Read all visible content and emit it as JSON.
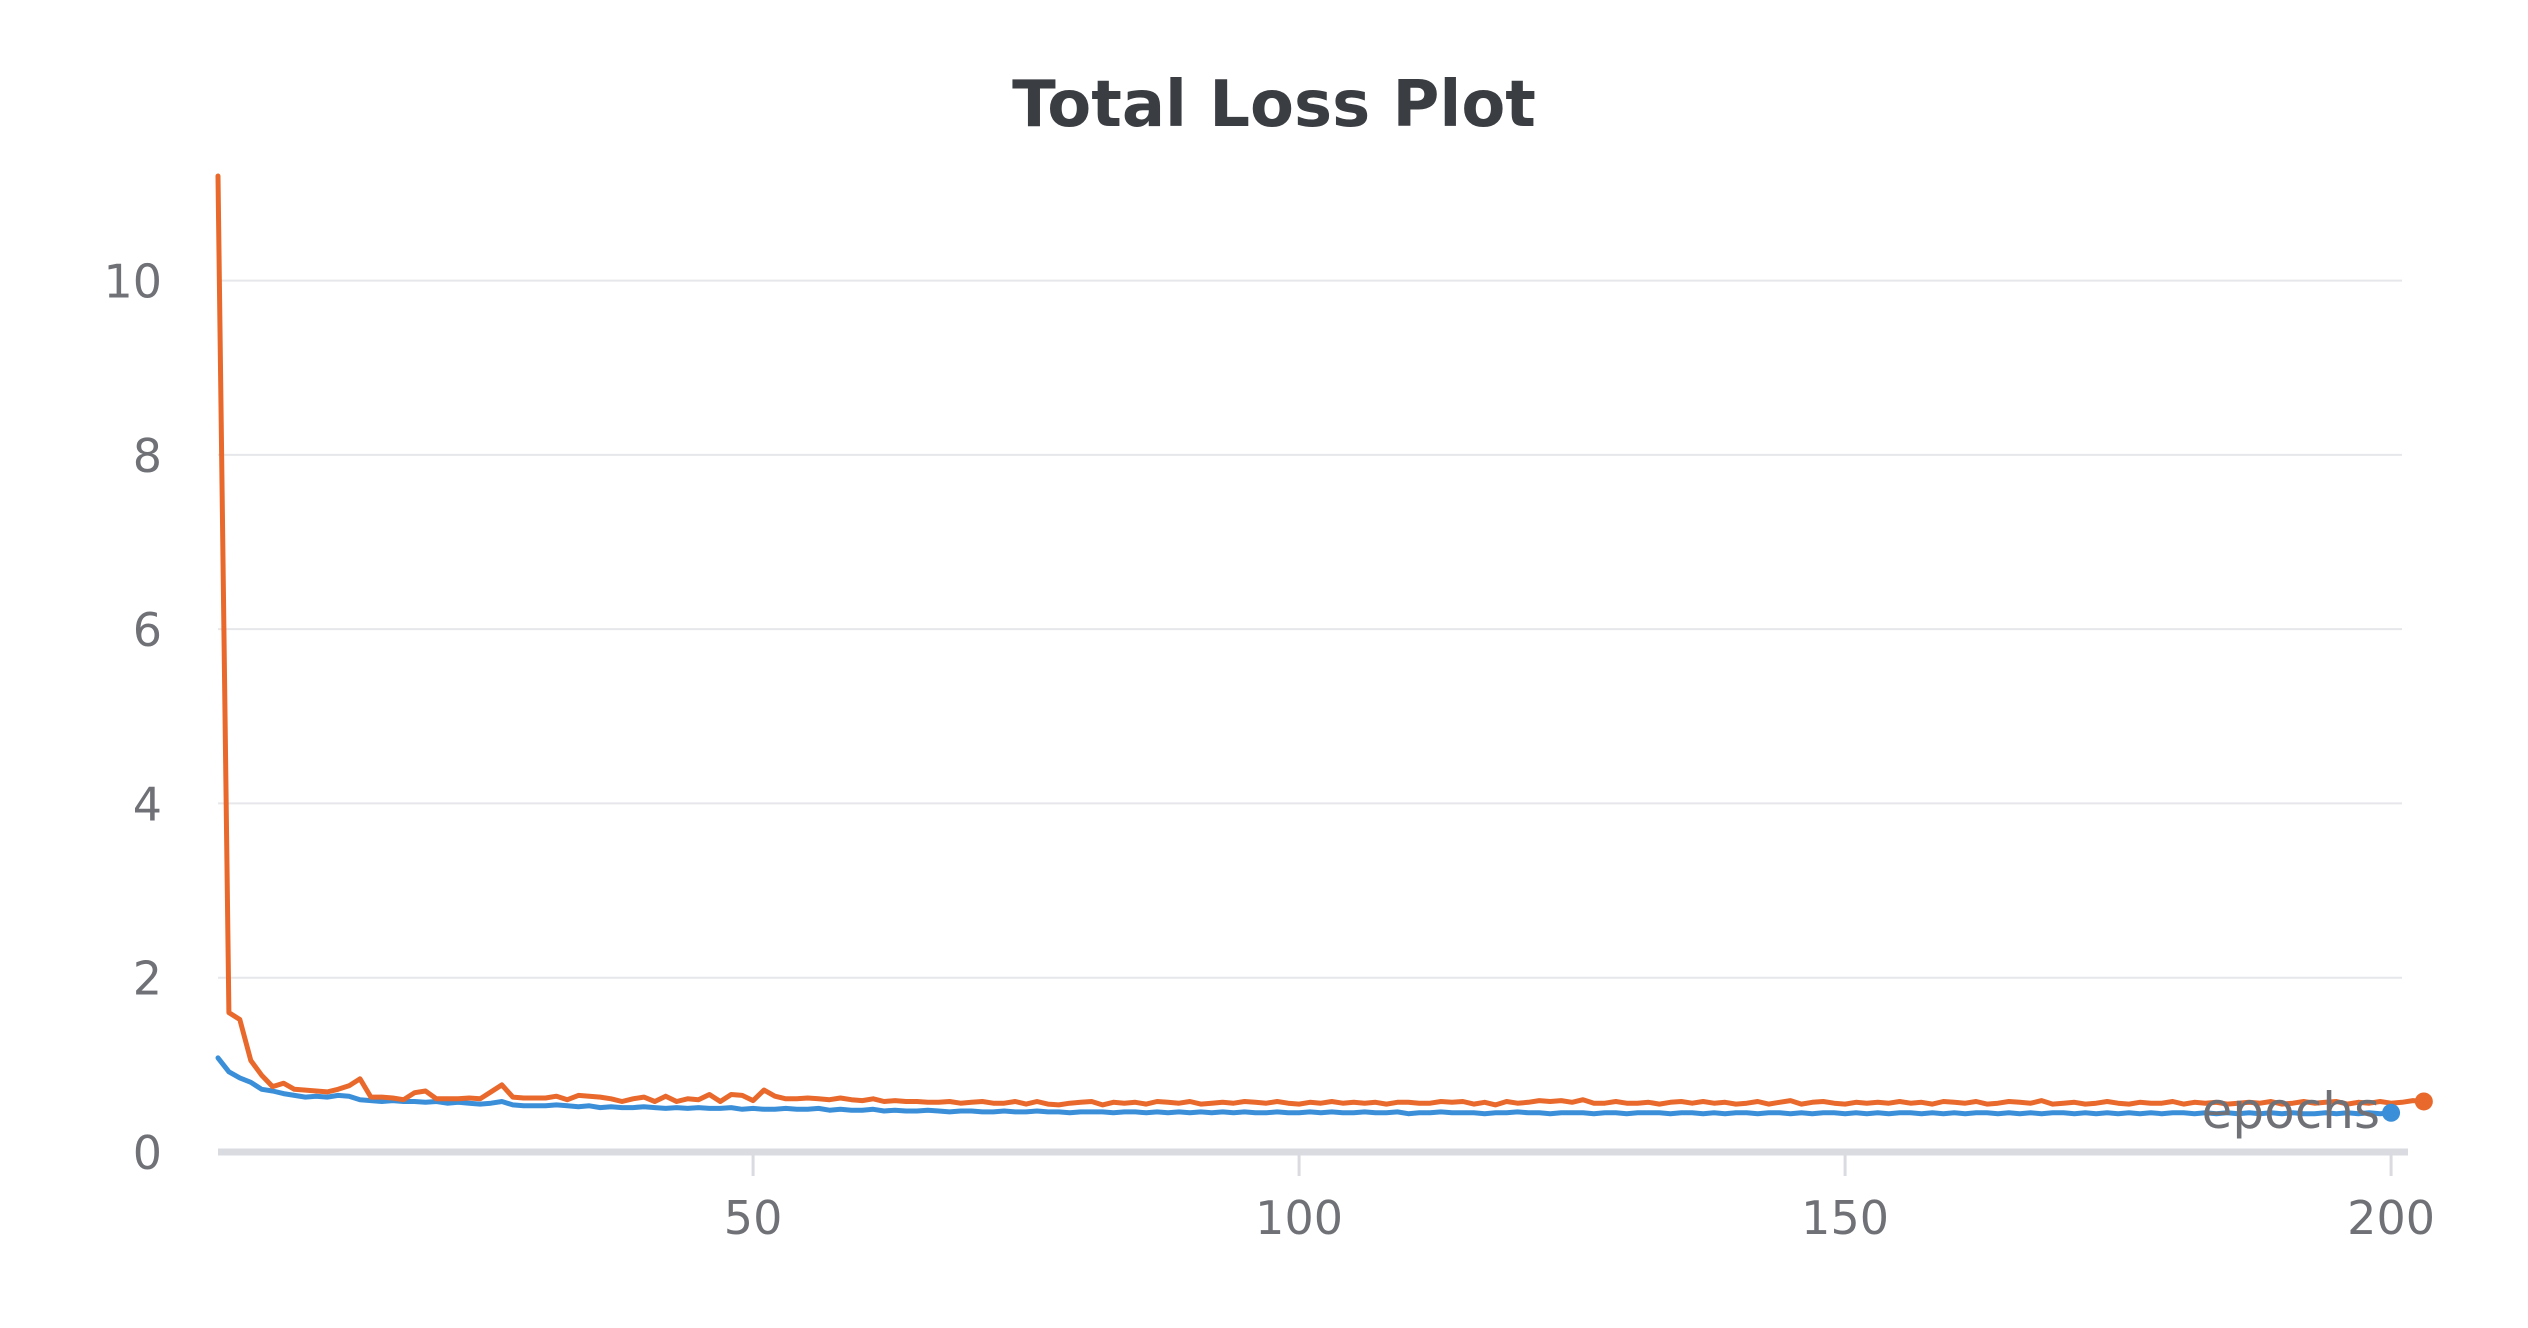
{
  "chart_data": {
    "type": "line",
    "title": "Total Loss Plot",
    "xlabel": "epochs",
    "ylabel": "",
    "xlim": [
      1,
      201
    ],
    "ylim": [
      0,
      11.2
    ],
    "x_ticks": [
      50,
      100,
      150,
      200
    ],
    "y_ticks": [
      0,
      2,
      4,
      6,
      8,
      10
    ],
    "grid": "horizontal",
    "legend": "none",
    "series": [
      {
        "color": "#e8692b",
        "values": [
          11.2,
          1.6,
          1.52,
          1.05,
          0.88,
          0.75,
          0.79,
          0.72,
          0.71,
          0.7,
          0.69,
          0.72,
          0.76,
          0.84,
          0.63,
          0.63,
          0.62,
          0.6,
          0.68,
          0.7,
          0.61,
          0.61,
          0.61,
          0.62,
          0.61,
          0.69,
          0.77,
          0.63,
          0.62,
          0.62,
          0.62,
          0.64,
          0.6,
          0.65,
          0.64,
          0.63,
          0.61,
          0.58,
          0.61,
          0.63,
          0.58,
          0.64,
          0.58,
          0.61,
          0.6,
          0.66,
          0.58,
          0.66,
          0.65,
          0.59,
          0.71,
          0.64,
          0.61,
          0.61,
          0.62,
          0.61,
          0.6,
          0.62,
          0.6,
          0.59,
          0.61,
          0.58,
          0.59,
          0.58,
          0.58,
          0.57,
          0.57,
          0.58,
          0.56,
          0.57,
          0.58,
          0.56,
          0.56,
          0.58,
          0.55,
          0.58,
          0.55,
          0.54,
          0.56,
          0.57,
          0.58,
          0.54,
          0.57,
          0.56,
          0.57,
          0.55,
          0.58,
          0.57,
          0.56,
          0.58,
          0.55,
          0.56,
          0.57,
          0.56,
          0.58,
          0.57,
          0.56,
          0.58,
          0.56,
          0.55,
          0.57,
          0.56,
          0.58,
          0.56,
          0.57,
          0.56,
          0.57,
          0.55,
          0.57,
          0.57,
          0.56,
          0.56,
          0.58,
          0.57,
          0.58,
          0.55,
          0.57,
          0.54,
          0.58,
          0.56,
          0.57,
          0.59,
          0.58,
          0.59,
          0.57,
          0.6,
          0.56,
          0.56,
          0.58,
          0.56,
          0.56,
          0.57,
          0.55,
          0.57,
          0.58,
          0.56,
          0.58,
          0.56,
          0.57,
          0.55,
          0.56,
          0.58,
          0.55,
          0.57,
          0.59,
          0.55,
          0.57,
          0.58,
          0.56,
          0.55,
          0.57,
          0.56,
          0.57,
          0.56,
          0.58,
          0.56,
          0.57,
          0.55,
          0.58,
          0.57,
          0.56,
          0.58,
          0.55,
          0.56,
          0.58,
          0.57,
          0.56,
          0.59,
          0.55,
          0.56,
          0.57,
          0.55,
          0.56,
          0.58,
          0.56,
          0.55,
          0.57,
          0.56,
          0.56,
          0.58,
          0.55,
          0.57,
          0.56,
          0.57,
          0.55,
          0.56,
          0.57,
          0.56,
          0.58,
          0.55,
          0.56,
          0.58,
          0.56,
          0.57,
          0.58,
          0.55,
          0.57,
          0.56,
          0.58,
          0.56,
          0.57,
          0.59,
          0.58
        ]
      },
      {
        "color": "#3b8fd9",
        "values": [
          1.08,
          0.92,
          0.85,
          0.8,
          0.72,
          0.7,
          0.67,
          0.65,
          0.63,
          0.64,
          0.63,
          0.65,
          0.64,
          0.6,
          0.59,
          0.58,
          0.59,
          0.58,
          0.58,
          0.57,
          0.58,
          0.56,
          0.57,
          0.56,
          0.55,
          0.56,
          0.58,
          0.54,
          0.53,
          0.53,
          0.53,
          0.54,
          0.53,
          0.52,
          0.53,
          0.51,
          0.52,
          0.51,
          0.51,
          0.52,
          0.51,
          0.5,
          0.51,
          0.5,
          0.51,
          0.5,
          0.5,
          0.51,
          0.49,
          0.5,
          0.49,
          0.49,
          0.5,
          0.49,
          0.49,
          0.5,
          0.48,
          0.49,
          0.48,
          0.48,
          0.49,
          0.47,
          0.48,
          0.47,
          0.47,
          0.48,
          0.47,
          0.46,
          0.47,
          0.47,
          0.46,
          0.46,
          0.47,
          0.46,
          0.46,
          0.47,
          0.46,
          0.46,
          0.45,
          0.46,
          0.46,
          0.46,
          0.45,
          0.46,
          0.46,
          0.45,
          0.46,
          0.45,
          0.46,
          0.45,
          0.46,
          0.45,
          0.46,
          0.45,
          0.46,
          0.45,
          0.45,
          0.46,
          0.45,
          0.45,
          0.46,
          0.45,
          0.46,
          0.45,
          0.45,
          0.46,
          0.45,
          0.45,
          0.46,
          0.44,
          0.45,
          0.45,
          0.46,
          0.45,
          0.45,
          0.45,
          0.44,
          0.45,
          0.45,
          0.46,
          0.45,
          0.45,
          0.44,
          0.45,
          0.45,
          0.45,
          0.44,
          0.45,
          0.45,
          0.44,
          0.45,
          0.45,
          0.45,
          0.44,
          0.45,
          0.45,
          0.44,
          0.45,
          0.44,
          0.45,
          0.45,
          0.44,
          0.45,
          0.45,
          0.44,
          0.45,
          0.44,
          0.45,
          0.45,
          0.44,
          0.45,
          0.44,
          0.45,
          0.44,
          0.45,
          0.45,
          0.44,
          0.45,
          0.44,
          0.45,
          0.44,
          0.45,
          0.45,
          0.44,
          0.45,
          0.44,
          0.45,
          0.44,
          0.45,
          0.45,
          0.44,
          0.45,
          0.44,
          0.45,
          0.44,
          0.45,
          0.44,
          0.45,
          0.44,
          0.45,
          0.45,
          0.44,
          0.45,
          0.44,
          0.45,
          0.44,
          0.45,
          0.44,
          0.45,
          0.44,
          0.45,
          0.44,
          0.44,
          0.45,
          0.44,
          0.45,
          0.44,
          0.45,
          0.44,
          0.45
        ]
      }
    ]
  }
}
